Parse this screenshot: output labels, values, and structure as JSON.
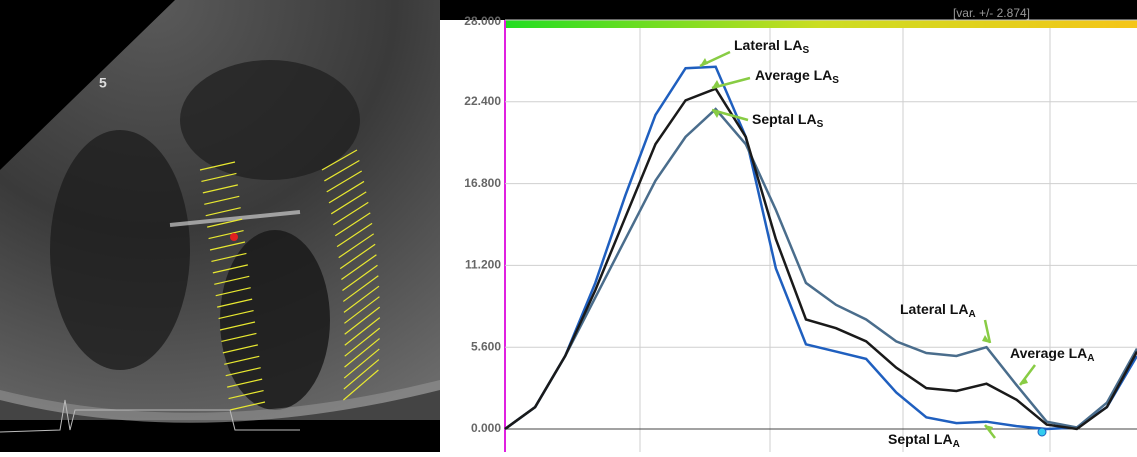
{
  "image": {
    "depth_label": "5"
  },
  "chart_data": {
    "type": "line",
    "status": "[var. +/- 2.874]",
    "ylim": [
      0,
      28
    ],
    "yticks": [
      {
        "value": 0,
        "label": "0.000"
      },
      {
        "value": 5.6,
        "label": "5.600"
      },
      {
        "value": 11.2,
        "label": "11.200"
      },
      {
        "value": 16.8,
        "label": "16.800"
      },
      {
        "value": 22.4,
        "label": "22.400"
      },
      {
        "value": 28,
        "label": "28.000"
      }
    ],
    "grid": true,
    "series": [
      {
        "color": "#1f5fbf",
        "values": [
          0,
          1.5,
          5,
          10,
          16,
          21.5,
          24.7,
          24.8,
          20,
          11,
          5.8,
          5.3,
          4.8,
          2.5,
          0.8,
          0.4,
          0.5,
          0.2,
          0,
          0.1,
          1.5,
          5
        ]
      },
      {
        "color": "#4a6d8c",
        "values": [
          0,
          1.5,
          5,
          9,
          13,
          17,
          20,
          21.9,
          19.5,
          15,
          10,
          8.5,
          7.5,
          6,
          5.2,
          5,
          5.6,
          3,
          0.5,
          0.1,
          1.8,
          5.5
        ]
      },
      {
        "color": "#1a1a1a",
        "values": [
          0,
          1.5,
          5,
          9.5,
          14.5,
          19.5,
          22.5,
          23.3,
          20,
          13,
          7.5,
          6.9,
          6,
          4.2,
          2.8,
          2.6,
          3.1,
          2,
          0.3,
          0,
          1.5,
          5.3
        ]
      }
    ],
    "annotations": [
      {
        "text": "Lateral LA",
        "sub": "S"
      },
      {
        "text": "Average LA",
        "sub": "S"
      },
      {
        "text": "Septal LA",
        "sub": "S"
      },
      {
        "text": "Lateral LA",
        "sub": "A"
      },
      {
        "text": "Average LA",
        "sub": "A"
      },
      {
        "text": "Septal LA",
        "sub": "A"
      }
    ]
  }
}
